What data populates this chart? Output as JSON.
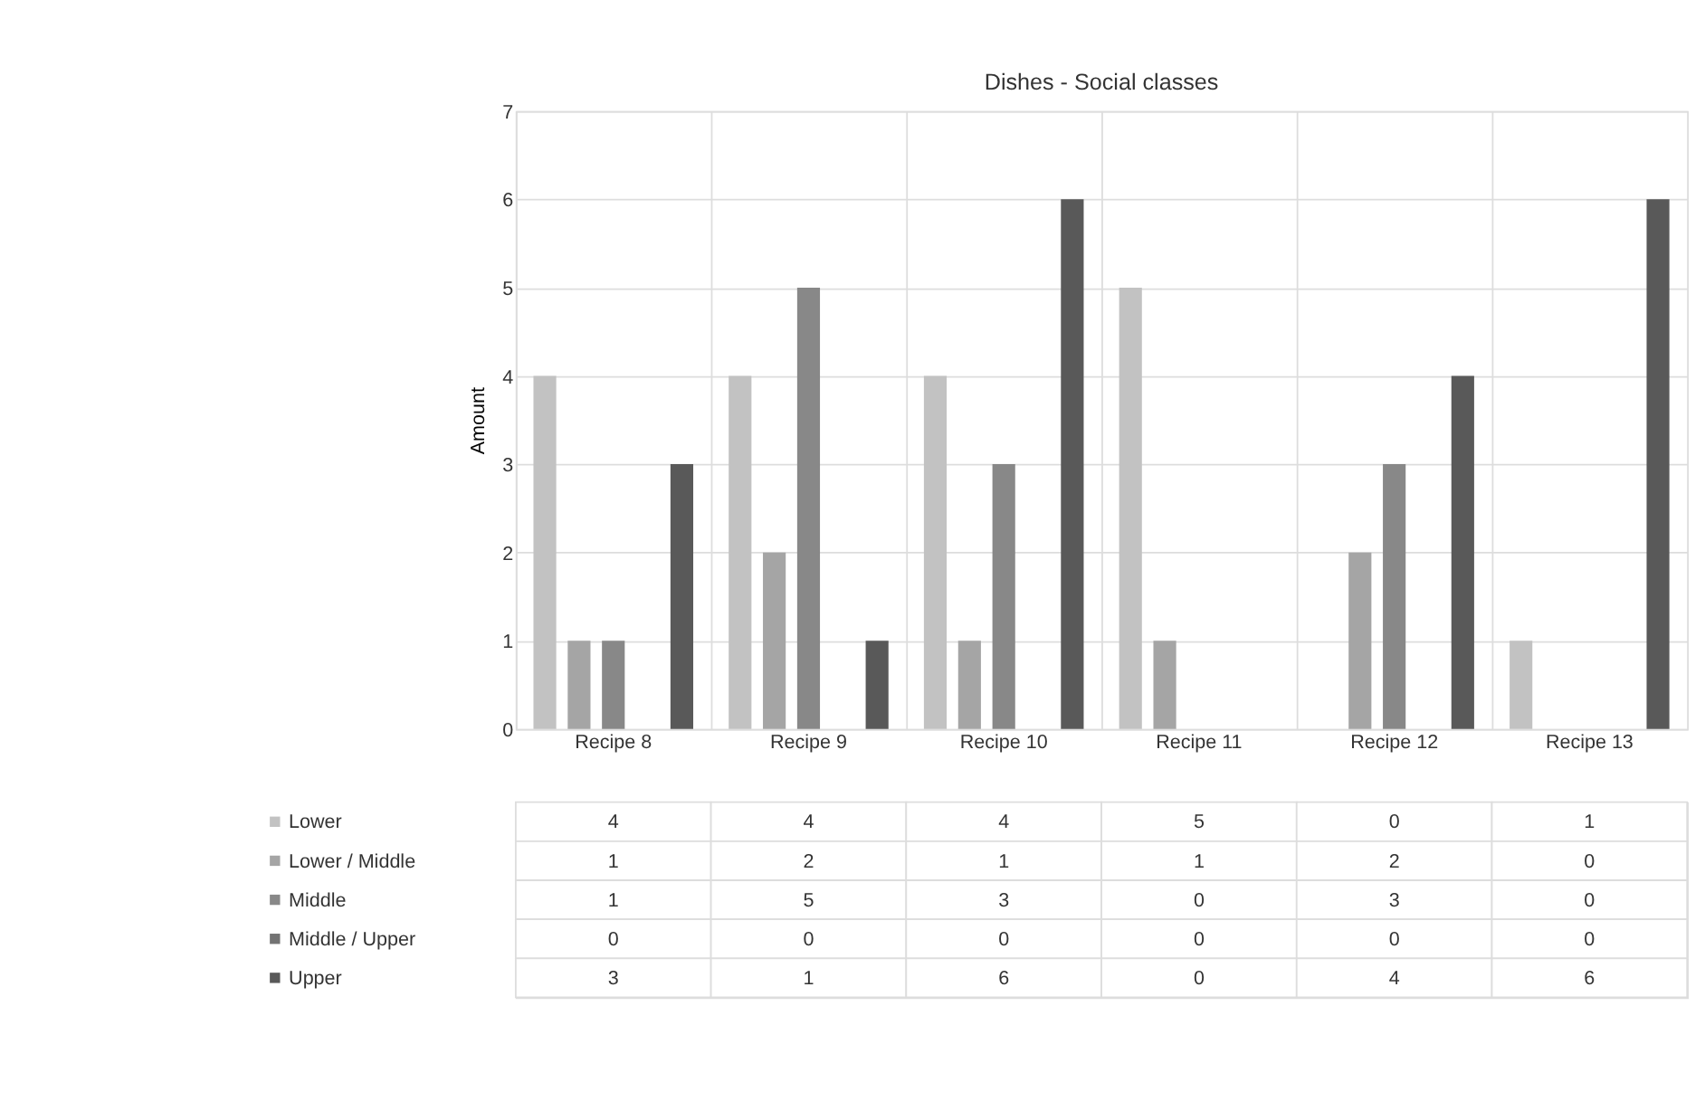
{
  "chart_data": {
    "type": "bar",
    "title": "Dishes - Social classes",
    "ylabel": "Amount",
    "categories": [
      "Recipe 8",
      "Recipe 9",
      "Recipe 10",
      "Recipe 11",
      "Recipe 12",
      "Recipe 13"
    ],
    "series": [
      {
        "name": "Lower",
        "color": "#c2c2c2",
        "values": [
          4,
          4,
          4,
          5,
          0,
          1
        ]
      },
      {
        "name": "Lower / Middle",
        "color": "#a5a5a5",
        "values": [
          1,
          2,
          1,
          1,
          2,
          0
        ]
      },
      {
        "name": "Middle",
        "color": "#888888",
        "values": [
          1,
          5,
          3,
          0,
          3,
          0
        ]
      },
      {
        "name": "Middle / Upper",
        "color": "#737373",
        "values": [
          0,
          0,
          0,
          0,
          0,
          0
        ]
      },
      {
        "name": "Upper",
        "color": "#595959",
        "values": [
          3,
          1,
          6,
          0,
          4,
          6
        ]
      }
    ],
    "ylim": [
      0,
      7
    ],
    "yticks": [
      0,
      1,
      2,
      3,
      4,
      5,
      6,
      7
    ],
    "grid": true,
    "legend": "bottom",
    "data_labels": true
  }
}
